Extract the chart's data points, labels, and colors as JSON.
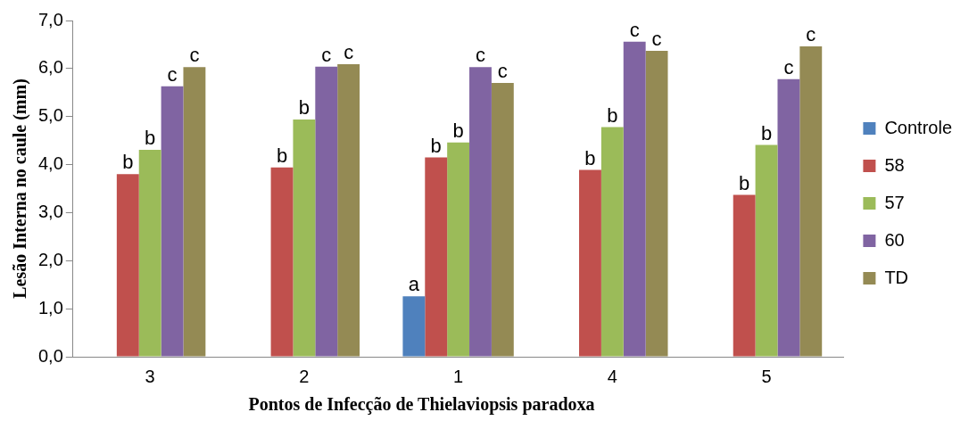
{
  "chart_data": {
    "type": "bar",
    "xlabel": "Pontos de Infecção de Thielaviopsis paradoxa",
    "ylabel": "Lesão Interna no caule (mm)",
    "categories": [
      "3",
      "2",
      "1",
      "4",
      "5"
    ],
    "series": [
      {
        "name": "Controle",
        "color": "#4f81bd",
        "values": [
          null,
          null,
          1.26,
          null,
          null
        ],
        "value_labels": [
          null,
          null,
          "a",
          null,
          null
        ]
      },
      {
        "name": "58",
        "color": "#c0504d",
        "values": [
          3.8,
          3.94,
          4.15,
          3.89,
          3.37
        ],
        "value_labels": [
          "b",
          "b",
          "b",
          "b",
          "b"
        ]
      },
      {
        "name": "57",
        "color": "#9bbb59",
        "values": [
          4.31,
          4.94,
          4.46,
          4.78,
          4.41
        ],
        "value_labels": [
          "b",
          "b",
          "b",
          "b",
          "b"
        ]
      },
      {
        "name": "60",
        "color": "#8064a2",
        "values": [
          5.63,
          6.04,
          6.03,
          6.56,
          5.78
        ],
        "value_labels": [
          "c",
          "c",
          "c",
          "c",
          "c"
        ]
      },
      {
        "name": "TD",
        "color": "#948a54",
        "values": [
          6.03,
          6.09,
          5.7,
          6.37,
          6.46
        ],
        "value_labels": [
          "c",
          "c",
          "c",
          "c",
          "c"
        ]
      }
    ],
    "ylim": [
      0,
      7
    ],
    "yticks": [
      {
        "value": 0,
        "label": "0,0"
      },
      {
        "value": 1,
        "label": "1,0"
      },
      {
        "value": 2,
        "label": "2,0"
      },
      {
        "value": 3,
        "label": "3,0"
      },
      {
        "value": 4,
        "label": "4,0"
      },
      {
        "value": 5,
        "label": "5,0"
      },
      {
        "value": 6,
        "label": "6,0"
      },
      {
        "value": 7,
        "label": "7,0"
      }
    ],
    "grid": false,
    "legend": "right"
  }
}
